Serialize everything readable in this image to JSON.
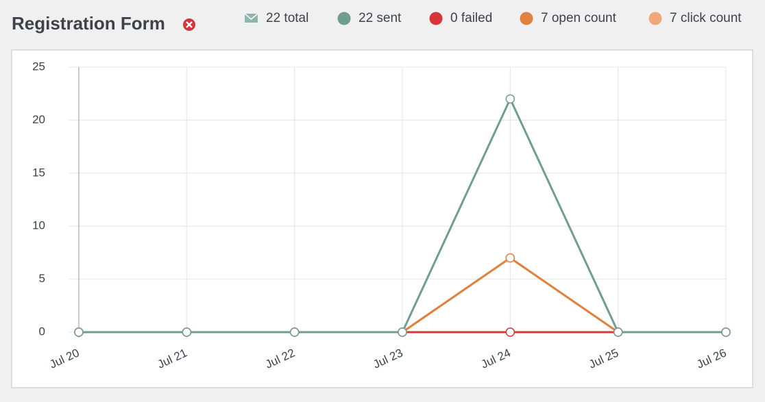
{
  "chart_data": {
    "type": "line",
    "title": "Registration Form",
    "legend_total": "22 total",
    "categories": [
      "Jul 20",
      "Jul 21",
      "Jul 22",
      "Jul 23",
      "Jul 24",
      "Jul 25",
      "Jul 26"
    ],
    "series": [
      {
        "name": "22 sent",
        "color": "#6f9e8f",
        "values": [
          0,
          0,
          0,
          0,
          22,
          0,
          0
        ]
      },
      {
        "name": "0 failed",
        "color": "#d63638",
        "values": [
          0,
          0,
          0,
          0,
          0,
          0,
          0
        ]
      },
      {
        "name": "7 open count",
        "color": "#e0823d",
        "values": [
          0,
          0,
          0,
          0,
          7,
          0,
          0
        ]
      },
      {
        "name": "7 click count",
        "color": "#f2a77a",
        "values": [
          0,
          0,
          0,
          0,
          7,
          0,
          0
        ]
      }
    ],
    "ylim": [
      0,
      25
    ],
    "yticks": [
      0,
      5,
      10,
      15,
      20,
      25
    ],
    "grid": true
  }
}
